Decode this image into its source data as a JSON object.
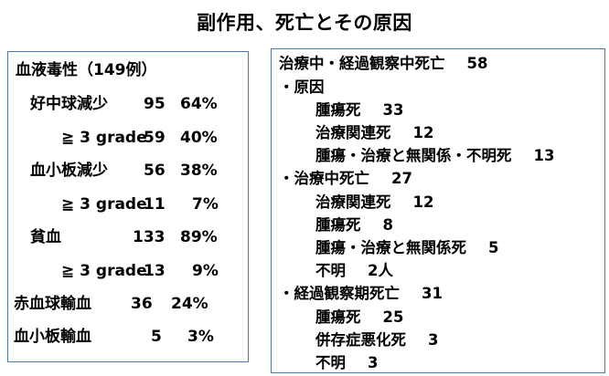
{
  "title": "副作用、死亡とその原因",
  "left_panel": {
    "heading": "血液毒性（149例）",
    "rows": [
      {
        "label": "好中球減少",
        "count": "95",
        "pct": "64%"
      },
      {
        "label": "≧ 3 grade",
        "count": "59",
        "pct": "40%"
      },
      {
        "label": "血小板減少",
        "count": "56",
        "pct": "38%"
      },
      {
        "label": "≧ 3 grade",
        "count": "11",
        "pct": "7%"
      },
      {
        "label": "貧血",
        "count": "133",
        "pct": "89%"
      },
      {
        "label": "≧ 3 grade",
        "count": "13",
        "pct": "9%"
      },
      {
        "label": "赤血球輸血",
        "count": "36",
        "pct": "24%"
      },
      {
        "label": "血小板輸血",
        "count": "5",
        "pct": "3%"
      }
    ]
  },
  "right_panel": {
    "lines": [
      {
        "text": "治療中・経過観察中死亡",
        "value": "58"
      },
      {
        "text": "・原因",
        "value": ""
      },
      {
        "text": "腫瘍死",
        "value": "33"
      },
      {
        "text": "治療関連死",
        "value": "12"
      },
      {
        "text": "腫瘍・治療と無関係・不明死",
        "value": "13"
      },
      {
        "text": "・治療中死亡",
        "value": "27"
      },
      {
        "text": "治療関連死",
        "value": "12"
      },
      {
        "text": "腫瘍死",
        "value": "8"
      },
      {
        "text": "腫瘍・治療と無関係死",
        "value": "5"
      },
      {
        "text": "不明",
        "value": "2人"
      },
      {
        "text": "・経過観察期死亡",
        "value": "31"
      },
      {
        "text": "腫瘍死",
        "value": "25"
      },
      {
        "text": "併存症悪化死",
        "value": "3"
      },
      {
        "text": "不明",
        "value": "3"
      }
    ]
  }
}
